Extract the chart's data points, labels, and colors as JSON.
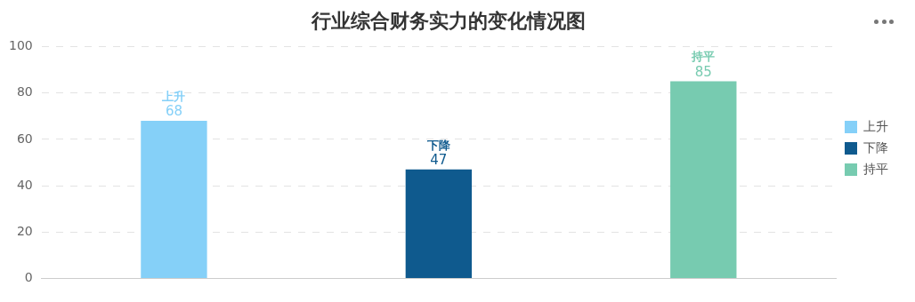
{
  "chart_data": {
    "type": "bar",
    "title": "行业综合财务实力的变化情况图",
    "categories": [
      null,
      null,
      null
    ],
    "series": [
      {
        "name": "上升",
        "color": "#85d0f8",
        "values": [
          68,
          null,
          null
        ]
      },
      {
        "name": "下降",
        "color": "#0f5a8e",
        "values": [
          null,
          47,
          null
        ]
      },
      {
        "name": "持平",
        "color": "#77cbb0",
        "values": [
          null,
          null,
          85
        ]
      }
    ],
    "ylim": [
      0,
      100
    ],
    "yticks": [
      0,
      20,
      40,
      60,
      80,
      100
    ],
    "grid": "y",
    "legend": "right",
    "data_labels": true
  }
}
